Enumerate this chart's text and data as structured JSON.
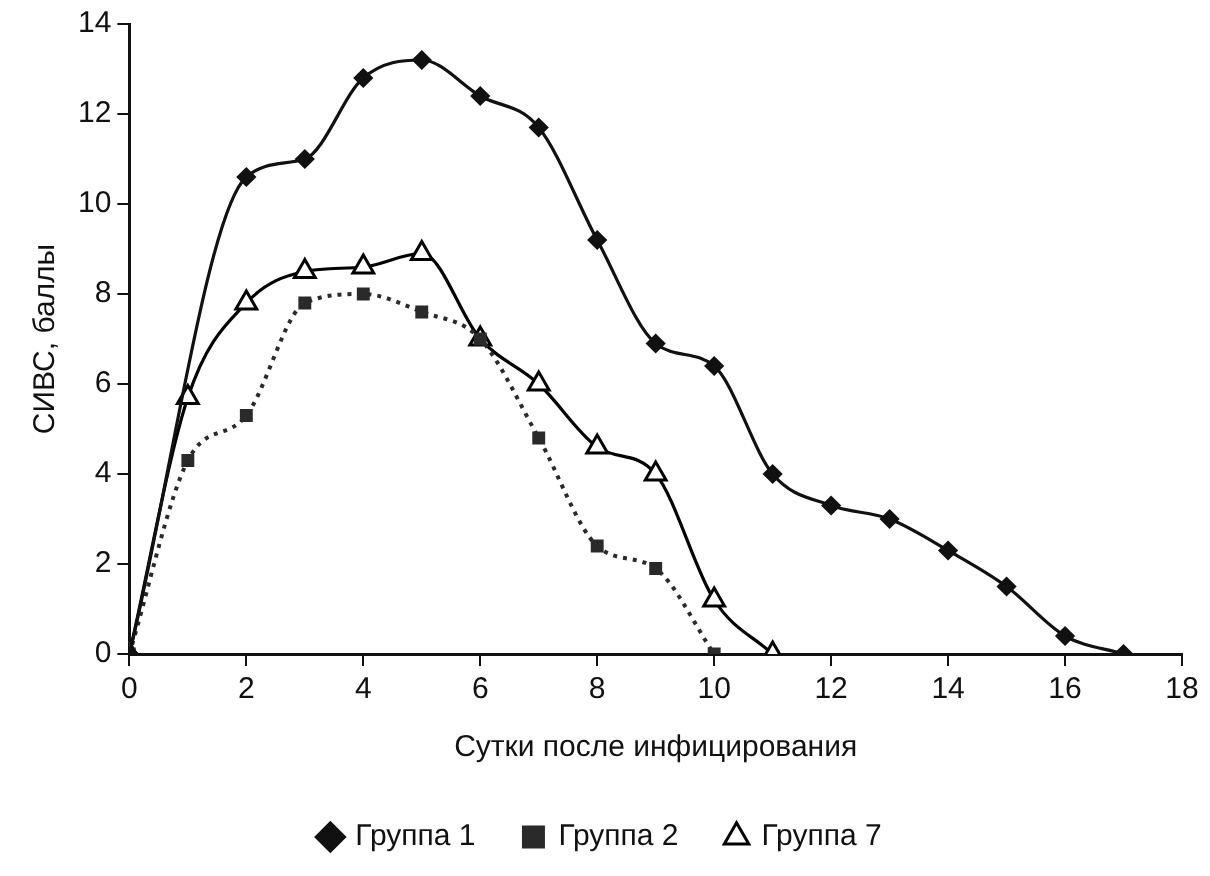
{
  "chart_data": {
    "type": "line",
    "xlabel": "Сутки после инфицирования",
    "ylabel": "СИВС, баллы",
    "xlim": [
      0,
      18
    ],
    "xticks": [
      0,
      2,
      4,
      6,
      8,
      10,
      12,
      14,
      16,
      18
    ],
    "ylim": [
      0,
      14
    ],
    "yticks": [
      0,
      2,
      4,
      6,
      8,
      10,
      12,
      14
    ],
    "grid": false,
    "legend": "bottom",
    "series": [
      {
        "name": "Группа 1",
        "color": "#111111",
        "marker": "diamond",
        "line_style": "solid",
        "x": [
          0,
          1,
          2,
          3,
          4,
          5,
          6,
          7,
          8,
          9,
          10,
          11,
          12,
          13,
          14,
          15,
          16,
          17
        ],
        "values": [
          0,
          null,
          10.6,
          11,
          12.8,
          13.2,
          12.4,
          11.7,
          9.2,
          6.9,
          6.4,
          4,
          3.3,
          3,
          2.3,
          1.5,
          0.4,
          0
        ]
      },
      {
        "name": "Группа 2",
        "color": "#2a2a2a",
        "marker": "square",
        "line_style": "dotted",
        "x": [
          0,
          1,
          2,
          3,
          4,
          5,
          6,
          7,
          8,
          9,
          10
        ],
        "values": [
          0,
          4.3,
          5.3,
          7.8,
          8,
          7.6,
          7,
          4.8,
          2.4,
          1.9,
          0
        ]
      },
      {
        "name": "Группа 7",
        "color": "#000000",
        "marker": "triangle",
        "line_style": "solid",
        "x": [
          0,
          1,
          2,
          3,
          4,
          5,
          6,
          7,
          8,
          9,
          10,
          11
        ],
        "values": [
          0,
          5.7,
          7.8,
          8.5,
          8.6,
          8.9,
          7,
          6,
          4.6,
          4,
          1.2,
          0
        ]
      }
    ]
  }
}
